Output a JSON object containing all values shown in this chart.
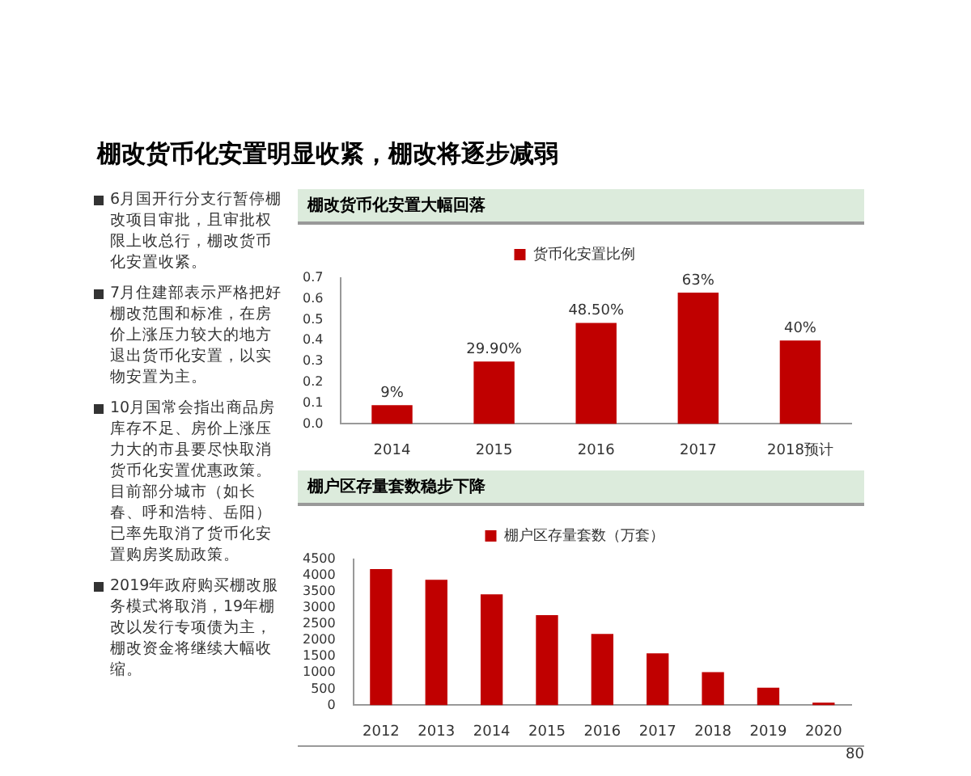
{
  "chart_data": [
    {
      "type": "other",
      "title": "棚改货币化安置明显收紧，棚改将逐步减弱",
      "annotations": [
        "6月国开行分支行暂停棚改项目审批，且审批权限上收总行，棚改货币化安置收紧。",
        "7月住建部表示严格把好棚改范围和标准，在房价上涨压力较大的地方退出货币化安置，以实物安置为主。",
        "10月国常会指出商品房库存不足、房价上涨压力大的市县要尽快取消货币化安置优惠政策。目前部分城市（如长春、呼和浩特、岳阳）已率先取消了货币化安置购房奖励政策。",
        "2019年政府购买棚改服务模式将取消，19年棚改以发行专项债为主，棚改资金将继续大幅收缩。"
      ]
    },
    {
      "type": "bar",
      "title": "棚改货币化安置大幅回落",
      "categories": [
        "2014",
        "2015",
        "2016",
        "2017",
        "2018预计"
      ],
      "series": [
        {
          "name": "货币化安置比例",
          "color": "#c00000",
          "values": [
            0.09,
            0.299,
            0.485,
            0.63,
            0.4
          ],
          "value_labels": [
            "9%",
            "29.90%",
            "48.50%",
            "63%",
            "40%"
          ]
        }
      ],
      "ylim": [
        0,
        0.7
      ],
      "yticks": [
        {
          "value": 0,
          "label": "0.0"
        },
        0.1,
        0.2,
        0.3,
        0.4,
        0.5,
        0.6,
        0.7
      ],
      "legend": "top"
    },
    {
      "type": "bar",
      "title": "棚户区存量套数稳步下降",
      "categories": [
        "2012",
        "2013",
        "2014",
        "2015",
        "2016",
        "2017",
        "2018",
        "2019",
        "2020"
      ],
      "series": [
        {
          "name": "棚户区存量套数（万套）",
          "color": "#c00000",
          "values": [
            4200,
            3870,
            3420,
            2780,
            2200,
            1600,
            1020,
            540,
            80
          ]
        }
      ],
      "ylim": [
        0,
        4500
      ],
      "yticks": [
        0,
        500,
        1000,
        1500,
        2000,
        2500,
        3000,
        3500,
        4000,
        4500
      ],
      "legend": "top",
      "annotations": [
        "80"
      ]
    }
  ]
}
